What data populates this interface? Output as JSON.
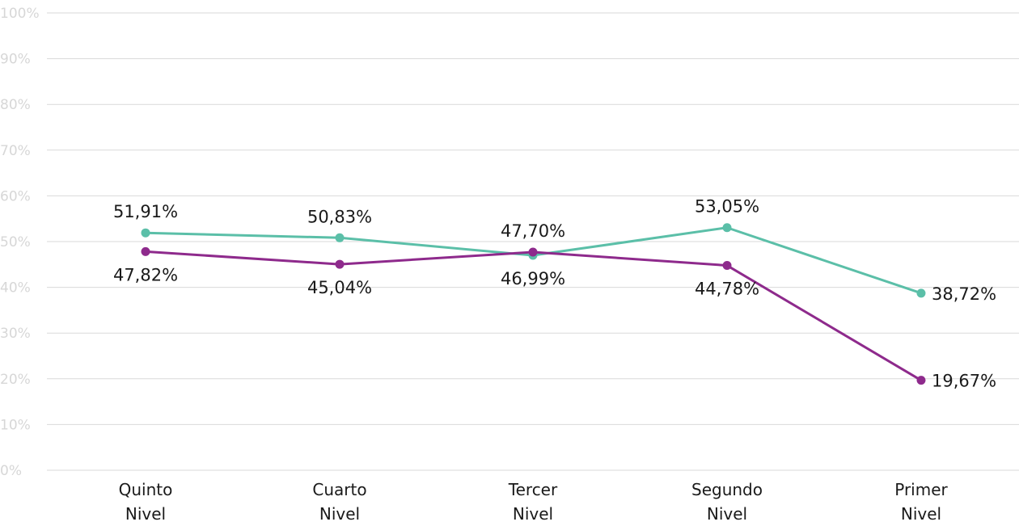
{
  "chart_data": {
    "type": "line",
    "categories": [
      [
        "Quinto",
        "Nivel"
      ],
      [
        "Cuarto",
        "Nivel"
      ],
      [
        "Tercer",
        "Nivel"
      ],
      [
        "Segundo",
        "Nivel"
      ],
      [
        "Primer",
        "Nivel"
      ]
    ],
    "ylim": [
      0,
      100
    ],
    "yticks": [
      0,
      10,
      20,
      30,
      40,
      50,
      60,
      70,
      80,
      90,
      100
    ],
    "ytick_labels": [
      "0%",
      "10%",
      "20%",
      "30%",
      "40%",
      "50%",
      "60%",
      "70%",
      "80%",
      "90%",
      "100%"
    ],
    "grid": true,
    "series": [
      {
        "color": "#5bbfa8",
        "values": [
          51.91,
          50.83,
          46.99,
          53.05,
          38.72
        ],
        "labels": [
          "51,91%",
          "50,83%",
          "46,99%",
          "53,05%",
          "38,72%"
        ],
        "label_pos": [
          "above",
          "above",
          "below",
          "above",
          "right"
        ]
      },
      {
        "color": "#8e2a8c",
        "values": [
          47.82,
          45.04,
          47.7,
          44.78,
          19.67
        ],
        "labels": [
          "47,82%",
          "45,04%",
          "47,70%",
          "44,78%",
          "19,67%"
        ],
        "label_pos": [
          "below",
          "below",
          "above",
          "below",
          "right"
        ]
      }
    ]
  }
}
